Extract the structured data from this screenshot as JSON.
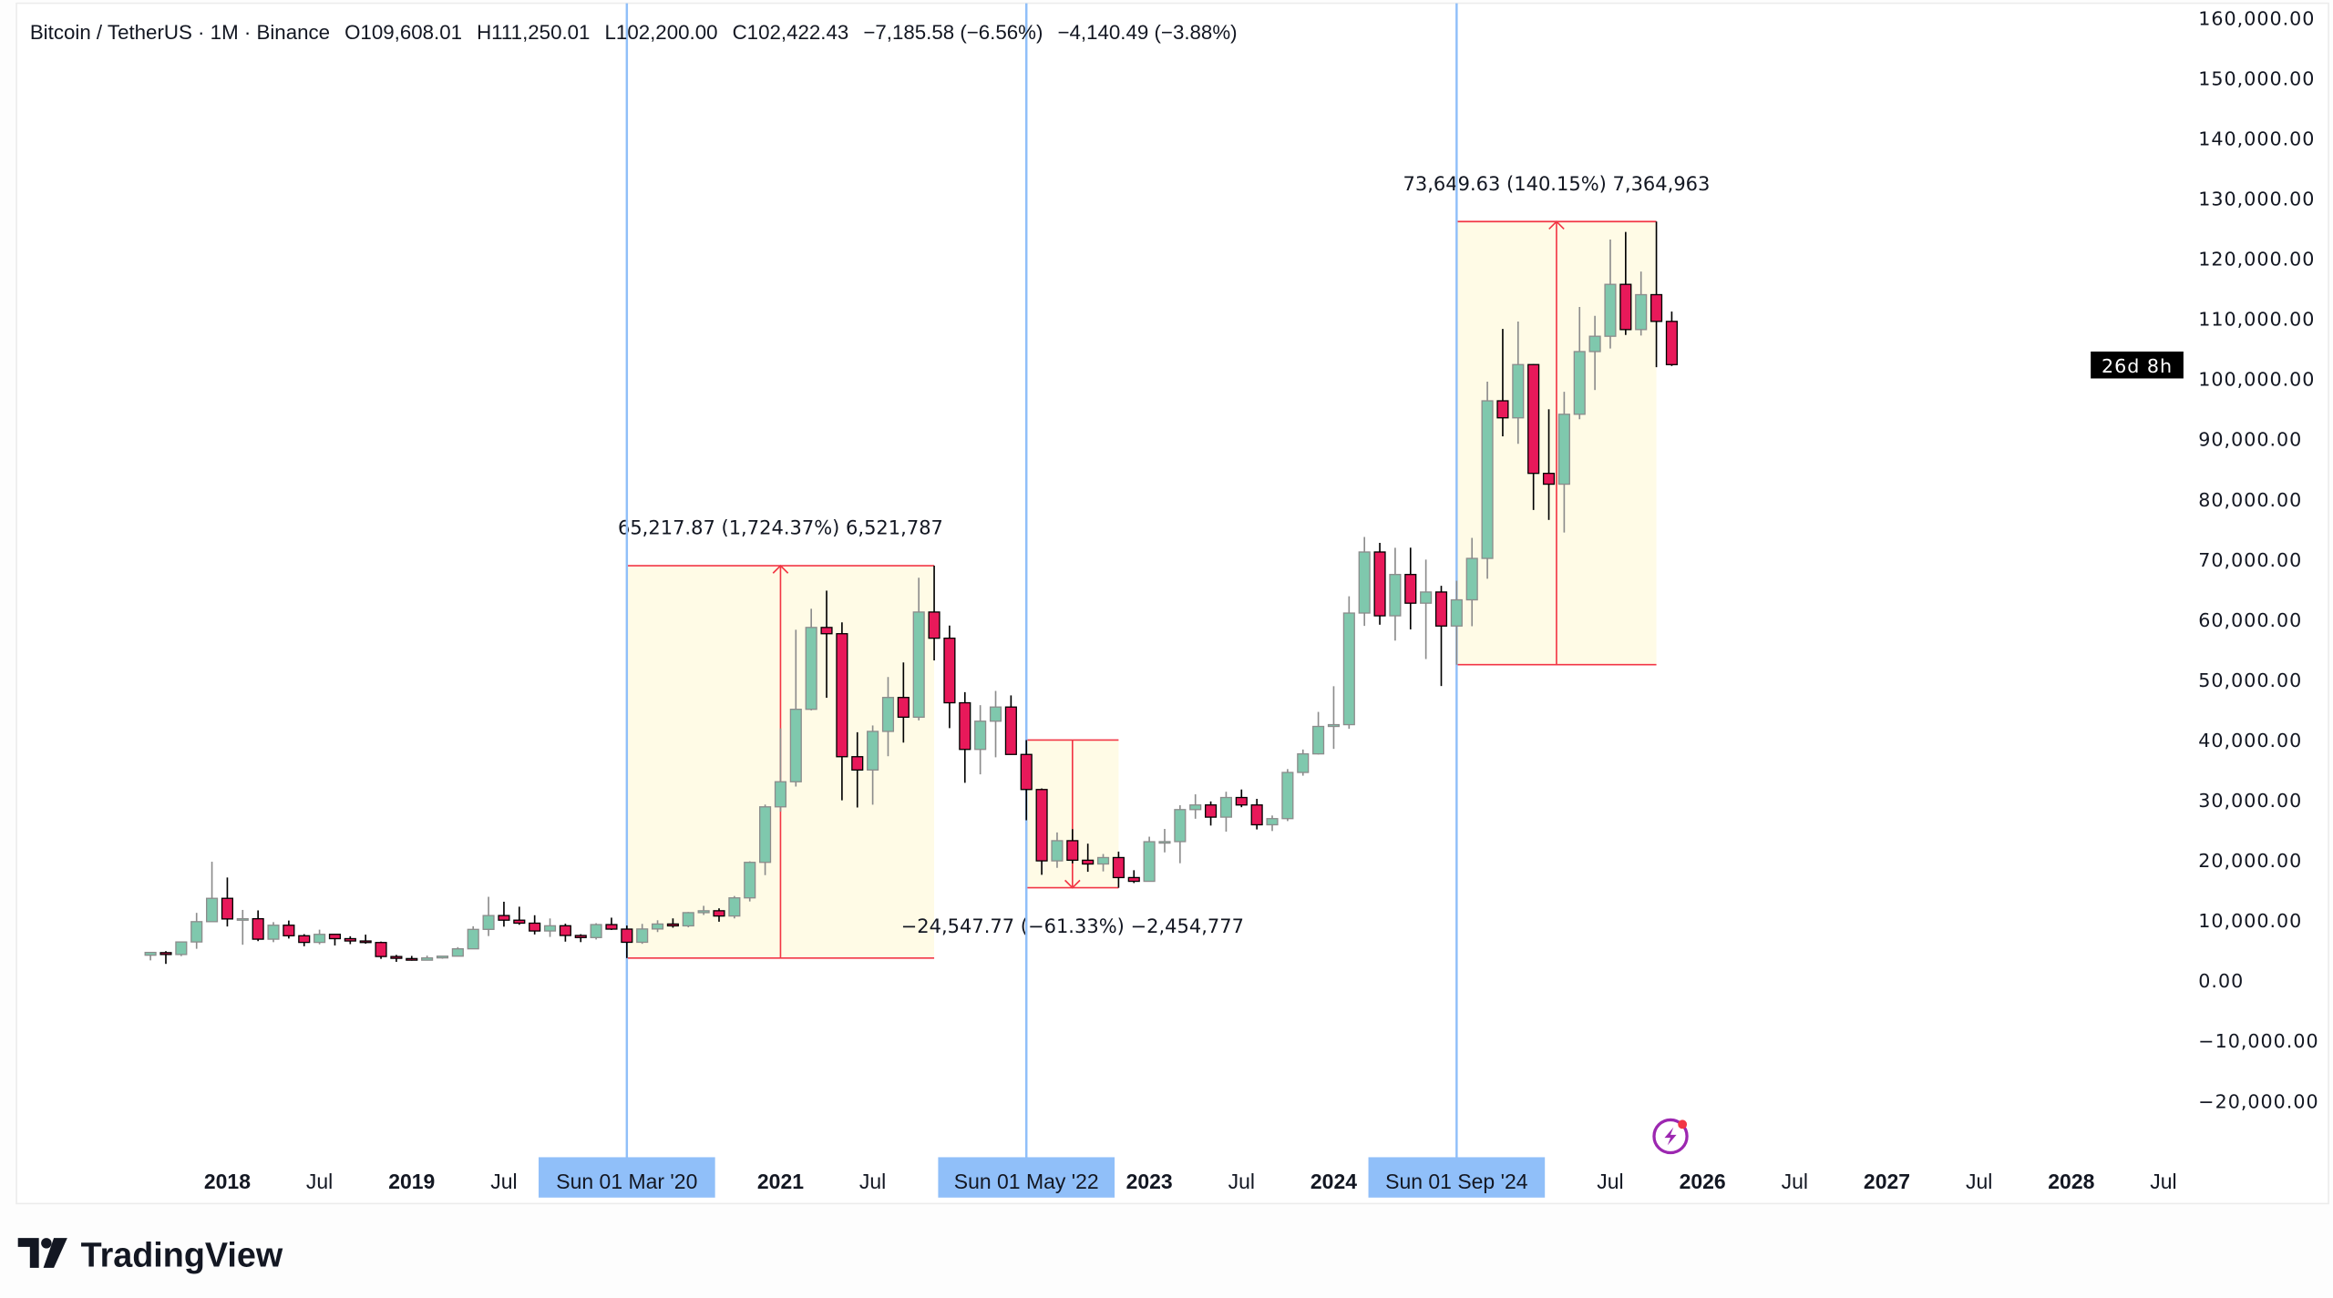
{
  "header": {
    "symbol": "Bitcoin / TetherUS · 1M · Binance",
    "open": "O109,608.01",
    "high": "H111,250.01",
    "low": "L102,200.00",
    "close": "C102,422.43",
    "change": "−7,185.58 (−6.56%)",
    "change2": "−4,140.49 (−3.88%)"
  },
  "countdown": "26d 8h",
  "brand": "TradingView",
  "colors": {
    "up": "#7fc8ad",
    "up_wick": "#8c8c8c",
    "down": "#e8195a",
    "down_border": "#000000",
    "measure": "#f23645",
    "measure_fill": "#fffbe6",
    "vline": "#90bff9",
    "bolt": "#9c27b0"
  },
  "vertical_lines": [
    {
      "date": "2020-03",
      "label": "Sun 01 Mar '20"
    },
    {
      "date": "2022-05",
      "label": "Sun 01 May '22"
    },
    {
      "date": "2024-09",
      "label": "Sun 01 Sep '24"
    }
  ],
  "measurements": [
    {
      "from": "2020-03",
      "to": "2021-11",
      "low": 3782,
      "high": 69000,
      "direction": "up",
      "label": "65,217.87 (1,724.37%) 6,521,787"
    },
    {
      "from": "2022-05",
      "to": "2022-11",
      "low": 15476,
      "high": 40023,
      "direction": "down",
      "label": "−24,547.77 (−61.33%) −2,454,777"
    },
    {
      "from": "2024-09",
      "to": "2025-10",
      "low": 52550,
      "high": 126199,
      "direction": "up",
      "label": "73,649.63 (140.15%) 7,364,963"
    }
  ],
  "chart_data": {
    "type": "candlestick",
    "title": "Bitcoin / TetherUS · 1M · Binance",
    "ylim": [
      -25000,
      162000
    ],
    "y_ticks": [
      {
        "value": 160000,
        "label": "160,000.00"
      },
      {
        "value": 150000,
        "label": "150,000.00"
      },
      {
        "value": 140000,
        "label": "140,000.00"
      },
      {
        "value": 130000,
        "label": "130,000.00"
      },
      {
        "value": 120000,
        "label": "120,000.00"
      },
      {
        "value": 110000,
        "label": "110,000.00"
      },
      {
        "value": 100000,
        "label": "100,000.00"
      },
      {
        "value": 90000,
        "label": "90,000.00"
      },
      {
        "value": 80000,
        "label": "80,000.00"
      },
      {
        "value": 70000,
        "label": "70,000.00"
      },
      {
        "value": 60000,
        "label": "60,000.00"
      },
      {
        "value": 50000,
        "label": "50,000.00"
      },
      {
        "value": 40000,
        "label": "40,000.00"
      },
      {
        "value": 30000,
        "label": "30,000.00"
      },
      {
        "value": 20000,
        "label": "20,000.00"
      },
      {
        "value": 10000,
        "label": "10,000.00"
      },
      {
        "value": 0,
        "label": "0.00"
      },
      {
        "value": -10000,
        "label": "−10,000.00"
      },
      {
        "value": -20000,
        "label": "−20,000.00"
      }
    ],
    "x_ticks": [
      {
        "date": "2018-01",
        "label": "2018",
        "year": true
      },
      {
        "date": "2018-07",
        "label": "Jul"
      },
      {
        "date": "2019-01",
        "label": "2019",
        "year": true
      },
      {
        "date": "2019-07",
        "label": "Jul"
      },
      {
        "date": "2021-01",
        "label": "2021",
        "year": true
      },
      {
        "date": "2021-07",
        "label": "Jul"
      },
      {
        "date": "2023-01",
        "label": "2023",
        "year": true
      },
      {
        "date": "2023-07",
        "label": "Jul"
      },
      {
        "date": "2024-01",
        "label": "2024",
        "year": true
      },
      {
        "date": "2025-07",
        "label": "Jul"
      },
      {
        "date": "2026-01",
        "label": "2026",
        "year": true
      },
      {
        "date": "2026-07",
        "label": "Jul"
      },
      {
        "date": "2027-01",
        "label": "2027",
        "year": true
      },
      {
        "date": "2027-07",
        "label": "Jul"
      },
      {
        "date": "2028-01",
        "label": "2028",
        "year": true
      },
      {
        "date": "2028-07",
        "label": "Jul"
      }
    ],
    "columns": [
      "date",
      "open",
      "high",
      "low",
      "close"
    ],
    "candles": [
      [
        "2017-08",
        4261,
        4745,
        3400,
        4724
      ],
      [
        "2017-09",
        4689,
        4939,
        2817,
        4378
      ],
      [
        "2017-10",
        4378,
        6470,
        4110,
        6463
      ],
      [
        "2017-11",
        6463,
        11300,
        5325,
        9838
      ],
      [
        "2017-12",
        9837,
        19798,
        10800,
        13716
      ],
      [
        "2018-01",
        13716,
        17176,
        9035,
        10285
      ],
      [
        "2018-02",
        10286,
        11786,
        6000,
        10326
      ],
      [
        "2018-03",
        10325,
        11710,
        6600,
        6923
      ],
      [
        "2018-04",
        6922,
        9759,
        6430,
        9246
      ],
      [
        "2018-05",
        9246,
        10020,
        7032,
        7494
      ],
      [
        "2018-06",
        7494,
        7760,
        5750,
        6391
      ],
      [
        "2018-07",
        6391,
        8507,
        6070,
        7730
      ],
      [
        "2018-08",
        7735,
        7750,
        5880,
        7011
      ],
      [
        "2018-09",
        7011,
        7410,
        6100,
        6626
      ],
      [
        "2018-10",
        6626,
        7680,
        6180,
        6371
      ],
      [
        "2018-11",
        6370,
        6525,
        3652,
        4041
      ],
      [
        "2018-12",
        4041,
        4312,
        3156,
        3742
      ],
      [
        "2019-01",
        3701,
        4140,
        3349,
        3437
      ],
      [
        "2019-02",
        3434,
        4198,
        3373,
        3814
      ],
      [
        "2019-03",
        3814,
        4140,
        3675,
        4103
      ],
      [
        "2019-04",
        4102,
        5600,
        4067,
        5321
      ],
      [
        "2019-05",
        5321,
        9074,
        5320,
        8555
      ],
      [
        "2019-06",
        8555,
        13970,
        7444,
        10854
      ],
      [
        "2019-07",
        10855,
        13147,
        9010,
        10085
      ],
      [
        "2019-08",
        10085,
        12325,
        9320,
        9588
      ],
      [
        "2019-09",
        9588,
        10905,
        7710,
        8289
      ],
      [
        "2019-10",
        8289,
        10370,
        7300,
        9153
      ],
      [
        "2019-11",
        9154,
        9505,
        6515,
        7541
      ],
      [
        "2019-12",
        7540,
        7750,
        6435,
        7195
      ],
      [
        "2020-01",
        7195,
        9578,
        6871,
        9352
      ],
      [
        "2020-02",
        9351,
        10500,
        8451,
        8599
      ],
      [
        "2020-03",
        8599,
        9189,
        3782,
        6410
      ],
      [
        "2020-04",
        6412,
        9468,
        6150,
        8620
      ],
      [
        "2020-05",
        8620,
        10067,
        8106,
        9448
      ],
      [
        "2020-06",
        9448,
        10380,
        8833,
        9138
      ],
      [
        "2020-07",
        9138,
        11444,
        8893,
        11335
      ],
      [
        "2020-08",
        11335,
        12468,
        10950,
        11650
      ],
      [
        "2020-09",
        11650,
        12050,
        9825,
        10776
      ],
      [
        "2020-10",
        10776,
        14100,
        10375,
        13791
      ],
      [
        "2020-11",
        13791,
        19863,
        13195,
        19695
      ],
      [
        "2020-12",
        19695,
        29300,
        17572,
        28923
      ],
      [
        "2021-01",
        28923,
        41950,
        28130,
        33092
      ],
      [
        "2021-02",
        33092,
        58352,
        32296,
        45135
      ],
      [
        "2021-03",
        45134,
        61844,
        44950,
        58740
      ],
      [
        "2021-04",
        58739,
        64854,
        47044,
        57694
      ],
      [
        "2021-05",
        57697,
        59593,
        30000,
        37254
      ],
      [
        "2021-06",
        37254,
        41330,
        28805,
        35045
      ],
      [
        "2021-07",
        35046,
        42448,
        29278,
        41462
      ],
      [
        "2021-08",
        41461,
        50500,
        37332,
        47100
      ],
      [
        "2021-09",
        47100,
        52920,
        39600,
        43824
      ],
      [
        "2021-10",
        43820,
        67000,
        43283,
        61300
      ],
      [
        "2021-11",
        61300,
        69000,
        53256,
        56950
      ],
      [
        "2021-12",
        56950,
        59053,
        42000,
        46216
      ],
      [
        "2022-01",
        46217,
        47990,
        32917,
        38466
      ],
      [
        "2022-02",
        38466,
        45821,
        34322,
        43160
      ],
      [
        "2022-03",
        43160,
        48189,
        37155,
        45510
      ],
      [
        "2022-04",
        45510,
        47444,
        37578,
        37630
      ],
      [
        "2022-05",
        37630,
        40023,
        26700,
        31801
      ],
      [
        "2022-06",
        31801,
        31982,
        17622,
        19942
      ],
      [
        "2022-07",
        19942,
        24668,
        18782,
        23293
      ],
      [
        "2022-08",
        23296,
        25211,
        19520,
        20050
      ],
      [
        "2022-09",
        20048,
        22799,
        18125,
        19422
      ],
      [
        "2022-10",
        19423,
        21085,
        18190,
        20490
      ],
      [
        "2022-11",
        20490,
        21480,
        15476,
        17164
      ],
      [
        "2022-12",
        17165,
        18387,
        16256,
        16542
      ],
      [
        "2023-01",
        16541,
        23960,
        16500,
        23125
      ],
      [
        "2023-02",
        23125,
        25250,
        21351,
        23141
      ],
      [
        "2023-03",
        23141,
        29184,
        19549,
        28465
      ],
      [
        "2023-04",
        28465,
        31000,
        26942,
        29233
      ],
      [
        "2023-05",
        29233,
        29820,
        25811,
        27210
      ],
      [
        "2023-06",
        27210,
        31431,
        24800,
        30472
      ],
      [
        "2023-07",
        30472,
        31804,
        28861,
        29232
      ],
      [
        "2023-08",
        29232,
        30244,
        25166,
        25940
      ],
      [
        "2023-09",
        25940,
        27483,
        24901,
        26962
      ],
      [
        "2023-10",
        26963,
        35198,
        26555,
        34639
      ],
      [
        "2023-11",
        34640,
        38450,
        34097,
        37723
      ],
      [
        "2023-12",
        37723,
        44700,
        37615,
        42284
      ],
      [
        "2024-01",
        42284,
        48969,
        38555,
        42580
      ],
      [
        "2024-02",
        42580,
        63913,
        41884,
        61130
      ],
      [
        "2024-03",
        61130,
        73777,
        59005,
        71280
      ],
      [
        "2024-04",
        71280,
        72797,
        59191,
        60672
      ],
      [
        "2024-05",
        60672,
        71979,
        56552,
        67540
      ],
      [
        "2024-06",
        67540,
        71997,
        58402,
        62772
      ],
      [
        "2024-07",
        62772,
        70016,
        53485,
        64628
      ],
      [
        "2024-08",
        64628,
        65660,
        49000,
        58974
      ],
      [
        "2024-09",
        58974,
        66498,
        52550,
        63327
      ],
      [
        "2024-10",
        63327,
        73620,
        58946,
        70215
      ],
      [
        "2024-11",
        70215,
        99588,
        66835,
        96407
      ],
      [
        "2024-12",
        96408,
        108353,
        90500,
        93576
      ],
      [
        "2025-01",
        93576,
        109588,
        89256,
        102429
      ],
      [
        "2025-02",
        102429,
        102500,
        78258,
        84349
      ],
      [
        "2025-03",
        84350,
        95000,
        76607,
        82550
      ],
      [
        "2025-04",
        82550,
        97900,
        74508,
        94172
      ],
      [
        "2025-05",
        94172,
        112000,
        93345,
        104591
      ],
      [
        "2025-06",
        104592,
        110530,
        98200,
        107135
      ],
      [
        "2025-07",
        107135,
        123218,
        105100,
        115764
      ],
      [
        "2025-08",
        115764,
        124474,
        107350,
        108246
      ],
      [
        "2025-09",
        108246,
        117900,
        107255,
        114048
      ],
      [
        "2025-10",
        114049,
        126199,
        102000,
        109608
      ],
      [
        "2025-11",
        109608,
        111250,
        102200,
        102422
      ]
    ]
  }
}
